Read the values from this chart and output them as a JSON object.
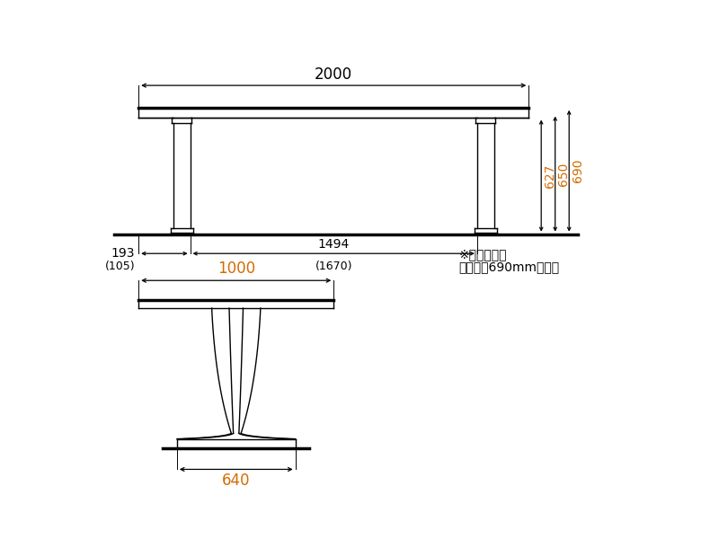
{
  "bg_color": "#ffffff",
  "line_color": "#000000",
  "orange_color": "#d46b00",
  "font_size_large": 12,
  "font_size_medium": 10,
  "font_size_small": 9,
  "note_line1": "※図の寸法は",
  "note_line2": "天板高さ690mmのとき"
}
